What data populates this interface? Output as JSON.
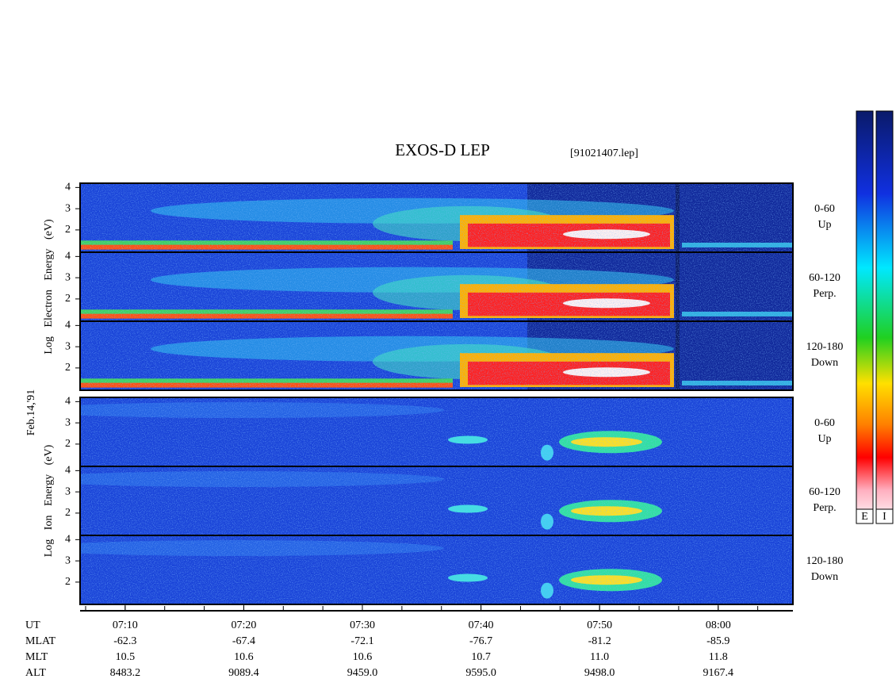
{
  "title": "EXOS-D LEP",
  "file_label": "[91021407.lep]",
  "date_label": "Feb.14,'91",
  "groups": [
    {
      "axis_label": "Log Electron Energy (eV)",
      "kind": "electron",
      "panels": [
        {
          "label": [
            "0-60",
            "Up"
          ]
        },
        {
          "label": [
            "60-120",
            "Perp."
          ]
        },
        {
          "label": [
            "120-180",
            "Down"
          ]
        }
      ]
    },
    {
      "axis_label": "Log Ion Energy (eV)",
      "kind": "ion",
      "panels": [
        {
          "label": [
            "0-60",
            "Up"
          ]
        },
        {
          "label": [
            "60-120",
            "Perp."
          ]
        },
        {
          "label": [
            "120-180",
            "Down"
          ]
        }
      ]
    }
  ],
  "ylim": [
    0.95,
    4.2
  ],
  "yticks": [
    2,
    3,
    4
  ],
  "xlim": [
    426.2,
    486.3
  ],
  "x_axis_label": "UT",
  "xticks": [
    {
      "value": 430,
      "label": "07:10"
    },
    {
      "value": 440,
      "label": "07:20"
    },
    {
      "value": 450,
      "label": "07:30"
    },
    {
      "value": 460,
      "label": "07:40"
    },
    {
      "value": 470,
      "label": "07:50"
    },
    {
      "value": 480,
      "label": "08:00"
    }
  ],
  "rows": [
    {
      "name": "MLAT",
      "values": [
        "-62.3",
        "-67.4",
        "-72.1",
        "-76.7",
        "-81.2",
        "-85.9"
      ]
    },
    {
      "name": "MLT",
      "values": [
        "10.5",
        "10.6",
        "10.6",
        "10.7",
        "11.0",
        "11.8"
      ]
    },
    {
      "name": "ALT",
      "values": [
        "8483.2",
        "9089.4",
        "9459.0",
        "9595.0",
        "9498.0",
        "9167.4"
      ]
    }
  ],
  "colorbars": [
    "E",
    "I"
  ]
}
